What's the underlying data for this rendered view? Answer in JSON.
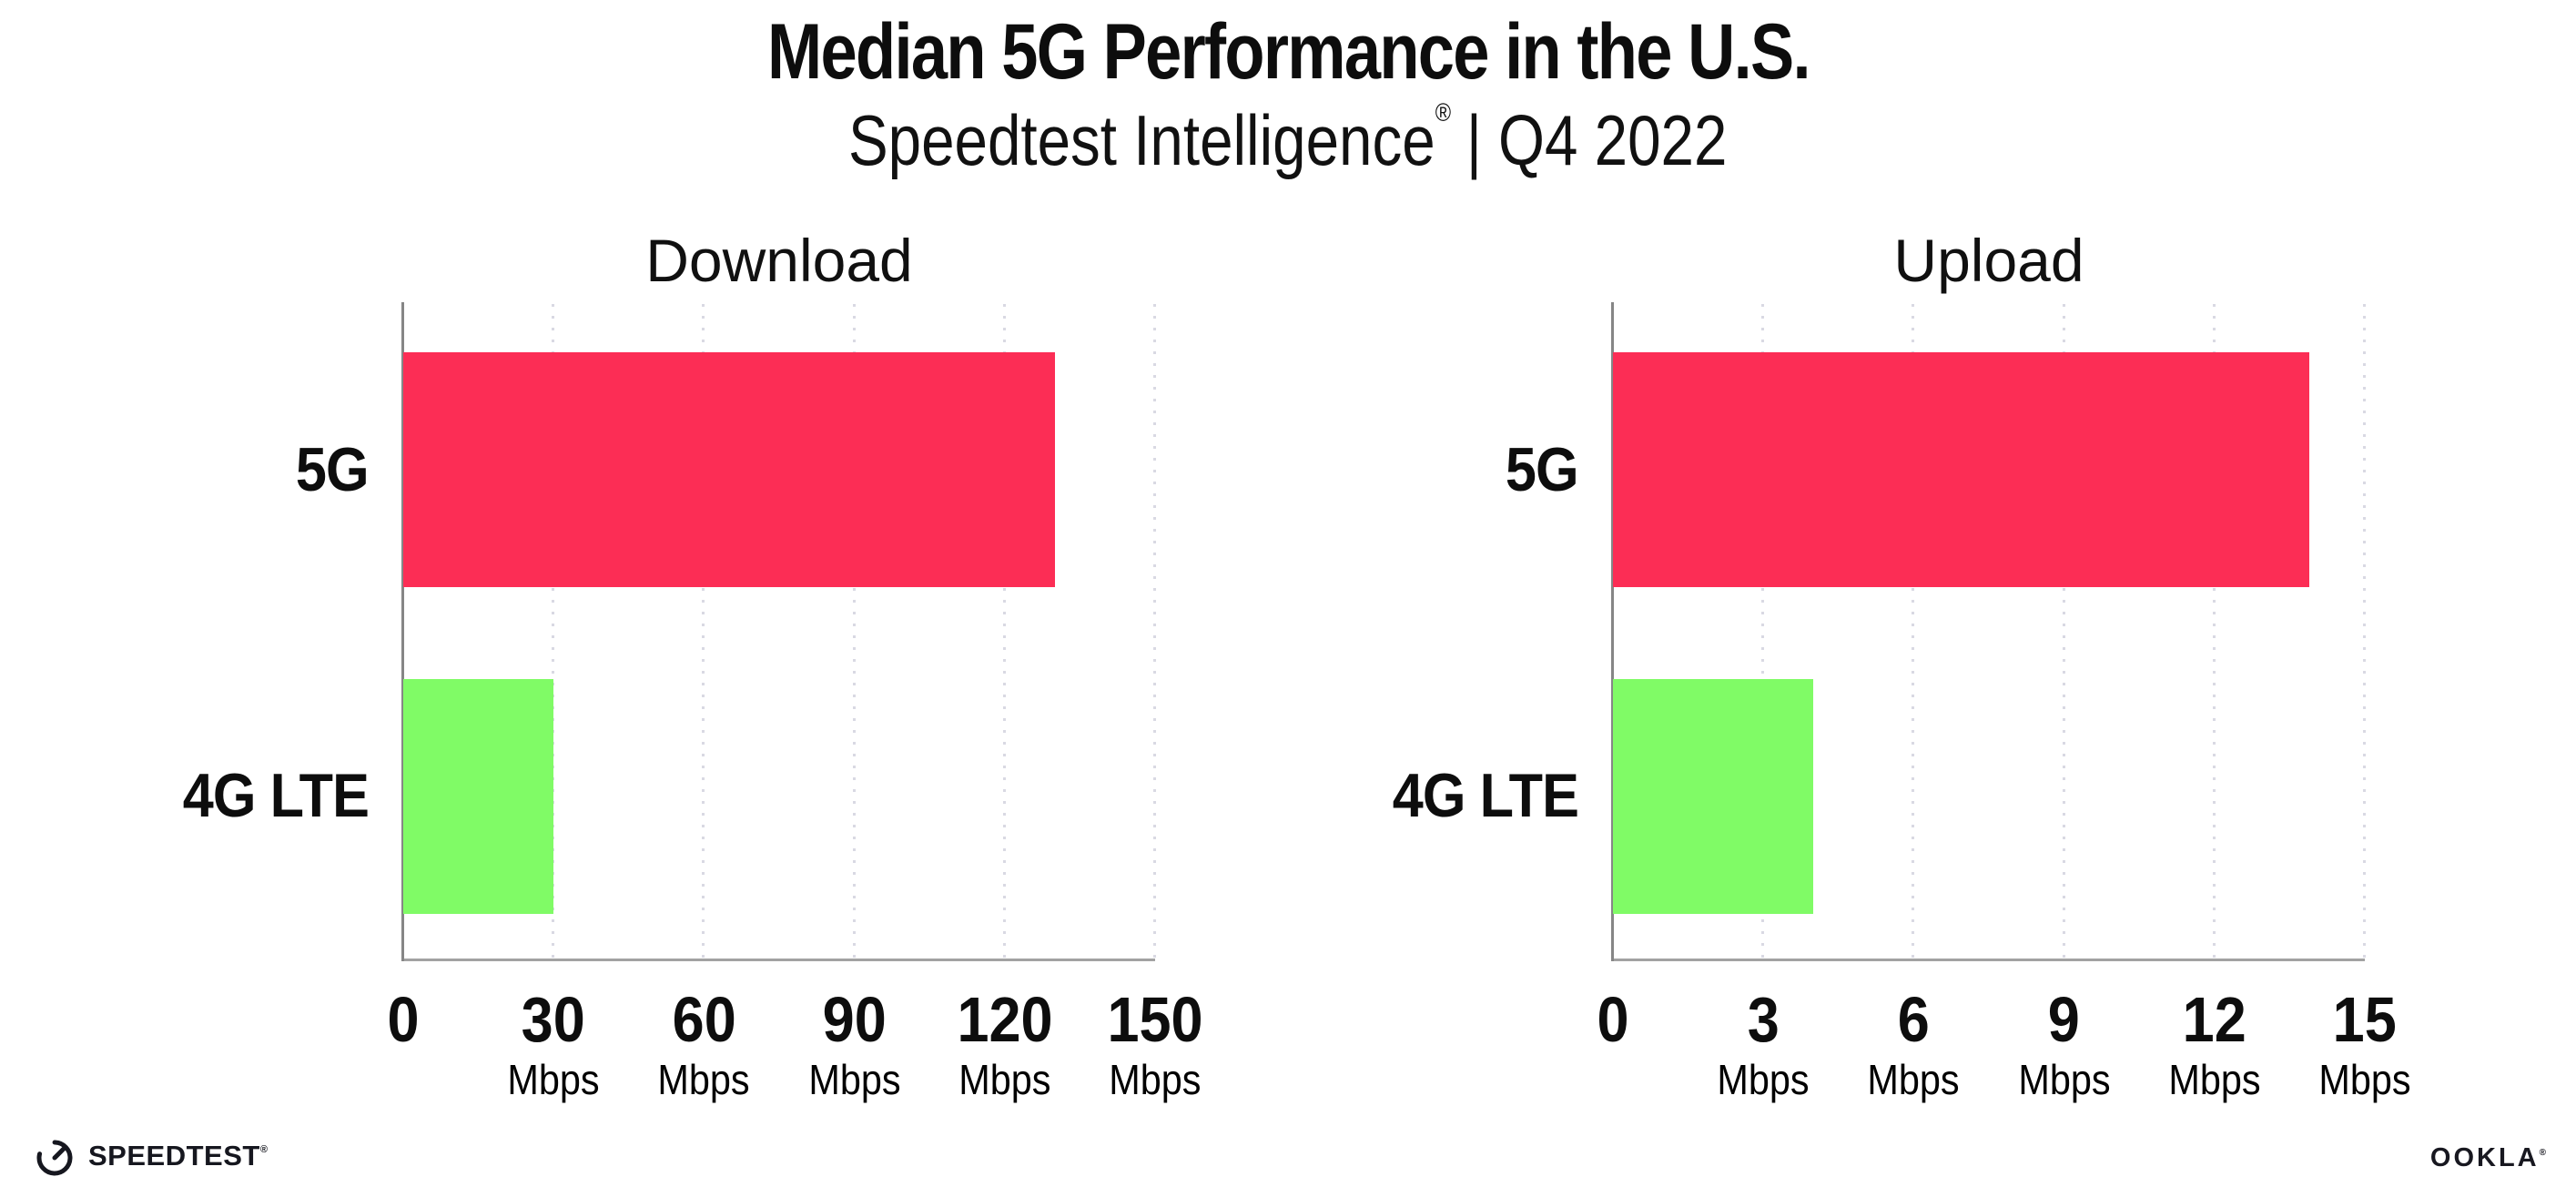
{
  "header": {
    "title": "Median 5G Performance in the U.S.",
    "subtitle_brand": "Speedtest Intelligence",
    "subtitle_trademark": "®",
    "subtitle_period": "| Q4 2022"
  },
  "chart_data": [
    {
      "type": "bar",
      "orientation": "horizontal",
      "title": "Download",
      "categories": [
        "5G",
        "4G LTE"
      ],
      "values": [
        130,
        30
      ],
      "value_unit": "Mbps",
      "xlim": [
        0,
        150
      ],
      "xticks": [
        0,
        30,
        60,
        90,
        120,
        150
      ],
      "tick_labels": [
        "0",
        "30",
        "60",
        "90",
        "120",
        "150"
      ],
      "tick_units": [
        "",
        "Mbps",
        "Mbps",
        "Mbps",
        "Mbps",
        "Mbps"
      ],
      "bar_colors": [
        "#FC2D55",
        "#80FB66"
      ],
      "grid": "vertical-dotted",
      "legend": "none"
    },
    {
      "type": "bar",
      "orientation": "horizontal",
      "title": "Upload",
      "categories": [
        "5G",
        "4G LTE"
      ],
      "values": [
        13.9,
        4
      ],
      "value_unit": "Mbps",
      "xlim": [
        0,
        15
      ],
      "xticks": [
        0,
        3,
        6,
        9,
        12,
        15
      ],
      "tick_labels": [
        "0",
        "3",
        "6",
        "9",
        "12",
        "15"
      ],
      "tick_units": [
        "",
        "Mbps",
        "Mbps",
        "Mbps",
        "Mbps",
        "Mbps"
      ],
      "bar_colors": [
        "#FC2D55",
        "#80FB66"
      ],
      "grid": "vertical-dotted",
      "legend": "none"
    }
  ],
  "footer": {
    "speedtest_label": "SPEEDTEST",
    "speedtest_trademark": "®",
    "ookla_label": "OOKLA",
    "ookla_trademark": "®"
  },
  "colors": {
    "bar_5g": "#FC2D55",
    "bar_4g_lte": "#80FB66",
    "axis_line": "#A2A2A2",
    "axis_spine": "#868686",
    "gridline_dots": "#D9D9E3",
    "text": "#0D0D0D"
  }
}
